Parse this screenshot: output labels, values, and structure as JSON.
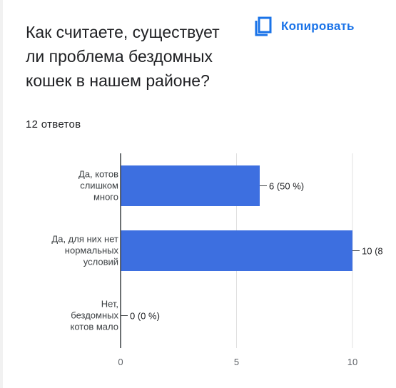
{
  "question": {
    "title": "Как считаете, существует ли проблема бездомных кошек в нашем районе?",
    "responses": "12 ответов"
  },
  "toolbar": {
    "copy_label": "Копировать",
    "copy_icon": "copy-icon"
  },
  "colors": {
    "bar": "#3d6fe0",
    "accent": "#1a73e8",
    "grid": "#e0e0e0",
    "axis": "#3c4043"
  },
  "chart_data": {
    "type": "bar",
    "orientation": "horizontal",
    "categories": [
      [
        "Да, котов",
        "слишком",
        "много"
      ],
      [
        "Да, для них нет",
        "нормальных",
        "условий"
      ],
      [
        "Нет,",
        "бездомных",
        "котов мало"
      ]
    ],
    "values": [
      6,
      10,
      0
    ],
    "data_labels": [
      "6 (50 %)",
      "10 (8",
      "0 (0 %)"
    ],
    "xlim": [
      0,
      10
    ],
    "x_ticks": [
      0,
      5,
      10
    ],
    "grid": true
  }
}
